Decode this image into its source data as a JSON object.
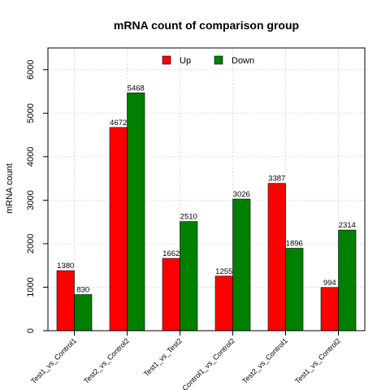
{
  "chart_data": {
    "type": "bar",
    "title": "mRNA count of comparison group",
    "xlabel": "",
    "ylabel": "mRNA count",
    "ylim": [
      0,
      6500
    ],
    "yticks": [
      0,
      1000,
      2000,
      3000,
      4000,
      5000,
      6000
    ],
    "grid": true,
    "legend_position": "top",
    "categories": [
      "Test1_vs_Control1",
      "Test2_vs_Control2",
      "Test1_vs_Test2",
      "Control1_vs_Control2",
      "Test2_vs_Control1",
      "Test1_vs_Control2"
    ],
    "series": [
      {
        "name": "Up",
        "color": "#ff0000",
        "values": [
          1380,
          4672,
          1662,
          1255,
          3387,
          994
        ]
      },
      {
        "name": "Down",
        "color": "#008000",
        "values": [
          830,
          5468,
          2510,
          3026,
          1896,
          2314
        ]
      }
    ]
  }
}
